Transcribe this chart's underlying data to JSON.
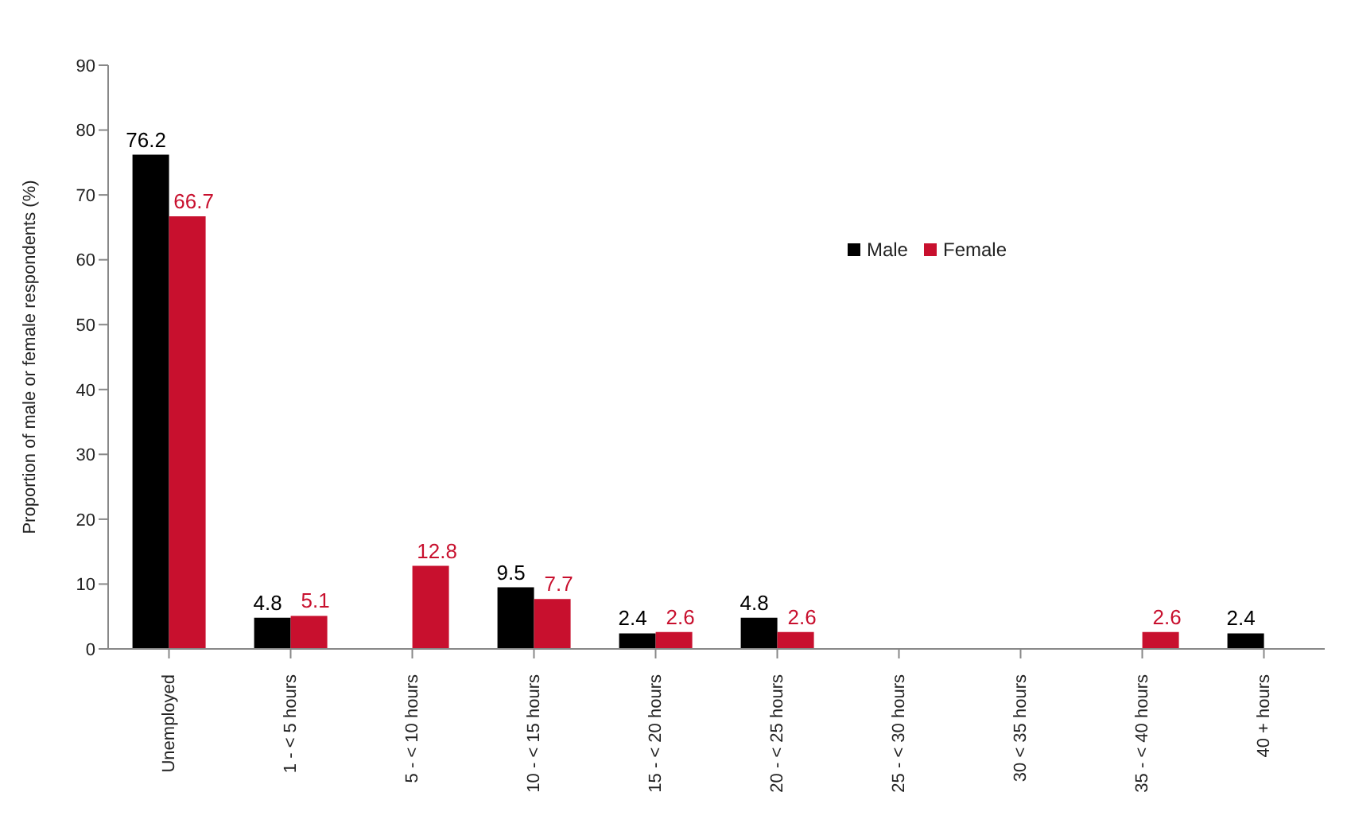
{
  "chart_data": {
    "type": "bar",
    "ylabel": "Proportion of male or female respondents (%)",
    "categories": [
      "Unemployed",
      "1 - < 5 hours",
      "5 - < 10 hours",
      "10 - < 15 hours",
      "15 - < 20 hours",
      "20 - < 25 hours",
      "25 - < 30 hours",
      "30 < 35 hours",
      "35 - < 40 hours",
      "40 + hours"
    ],
    "series": [
      {
        "name": "Male",
        "color": "#000000",
        "values": [
          76.2,
          4.8,
          null,
          9.5,
          2.4,
          4.8,
          null,
          null,
          null,
          2.4
        ]
      },
      {
        "name": "Female",
        "color": "#c8102e",
        "values": [
          66.7,
          5.1,
          12.8,
          7.7,
          2.6,
          2.6,
          null,
          null,
          2.6,
          null
        ]
      }
    ],
    "ylim": [
      0,
      90
    ],
    "yticks": [
      0,
      10,
      20,
      30,
      40,
      50,
      60,
      70,
      80,
      90
    ],
    "grid": false,
    "legend": "top right",
    "data_labels": true
  }
}
